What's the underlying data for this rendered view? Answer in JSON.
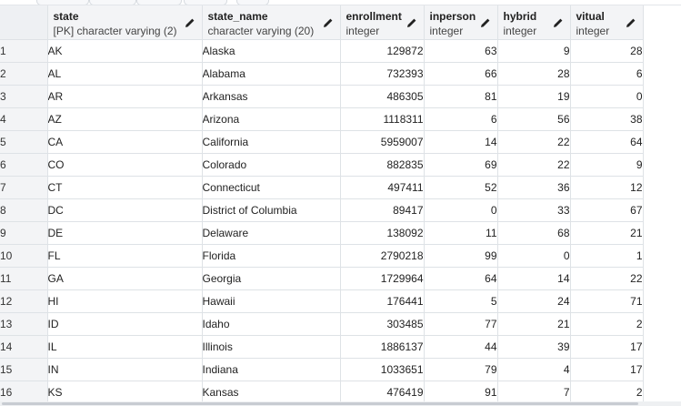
{
  "columns": [
    {
      "name": "state",
      "type": "[PK] character varying (2)"
    },
    {
      "name": "state_name",
      "type": "character varying (20)"
    },
    {
      "name": "enrollment",
      "type": "integer"
    },
    {
      "name": "inperson",
      "type": "integer"
    },
    {
      "name": "hybrid",
      "type": "integer"
    },
    {
      "name": "vitual",
      "type": "integer"
    }
  ],
  "rows": [
    {
      "n": "1",
      "state": "AK",
      "state_name": "Alaska",
      "enrollment": "129872",
      "inperson": "63",
      "hybrid": "9",
      "vitual": "28"
    },
    {
      "n": "2",
      "state": "AL",
      "state_name": "Alabama",
      "enrollment": "732393",
      "inperson": "66",
      "hybrid": "28",
      "vitual": "6"
    },
    {
      "n": "3",
      "state": "AR",
      "state_name": "Arkansas",
      "enrollment": "486305",
      "inperson": "81",
      "hybrid": "19",
      "vitual": "0"
    },
    {
      "n": "4",
      "state": "AZ",
      "state_name": "Arizona",
      "enrollment": "1118311",
      "inperson": "6",
      "hybrid": "56",
      "vitual": "38"
    },
    {
      "n": "5",
      "state": "CA",
      "state_name": "California",
      "enrollment": "5959007",
      "inperson": "14",
      "hybrid": "22",
      "vitual": "64"
    },
    {
      "n": "6",
      "state": "CO",
      "state_name": "Colorado",
      "enrollment": "882835",
      "inperson": "69",
      "hybrid": "22",
      "vitual": "9"
    },
    {
      "n": "7",
      "state": "CT",
      "state_name": "Connecticut",
      "enrollment": "497411",
      "inperson": "52",
      "hybrid": "36",
      "vitual": "12"
    },
    {
      "n": "8",
      "state": "DC",
      "state_name": "District of Columbia",
      "enrollment": "89417",
      "inperson": "0",
      "hybrid": "33",
      "vitual": "67"
    },
    {
      "n": "9",
      "state": "DE",
      "state_name": "Delaware",
      "enrollment": "138092",
      "inperson": "11",
      "hybrid": "68",
      "vitual": "21"
    },
    {
      "n": "10",
      "state": "FL",
      "state_name": "Florida",
      "enrollment": "2790218",
      "inperson": "99",
      "hybrid": "0",
      "vitual": "1"
    },
    {
      "n": "11",
      "state": "GA",
      "state_name": "Georgia",
      "enrollment": "1729964",
      "inperson": "64",
      "hybrid": "14",
      "vitual": "22"
    },
    {
      "n": "12",
      "state": "HI",
      "state_name": "Hawaii",
      "enrollment": "176441",
      "inperson": "5",
      "hybrid": "24",
      "vitual": "71"
    },
    {
      "n": "13",
      "state": "ID",
      "state_name": "Idaho",
      "enrollment": "303485",
      "inperson": "77",
      "hybrid": "21",
      "vitual": "2"
    },
    {
      "n": "14",
      "state": "IL",
      "state_name": "Illinois",
      "enrollment": "1886137",
      "inperson": "44",
      "hybrid": "39",
      "vitual": "17"
    },
    {
      "n": "15",
      "state": "IN",
      "state_name": "Indiana",
      "enrollment": "1033651",
      "inperson": "79",
      "hybrid": "4",
      "vitual": "17"
    },
    {
      "n": "16",
      "state": "KS",
      "state_name": "Kansas",
      "enrollment": "476419",
      "inperson": "91",
      "hybrid": "7",
      "vitual": "2"
    }
  ],
  "icons": {
    "column_edit": "pencil-icon"
  },
  "colors": {
    "header_bg": "#f3f4f6",
    "grid_line": "#dee2e6",
    "text": "#222222"
  }
}
